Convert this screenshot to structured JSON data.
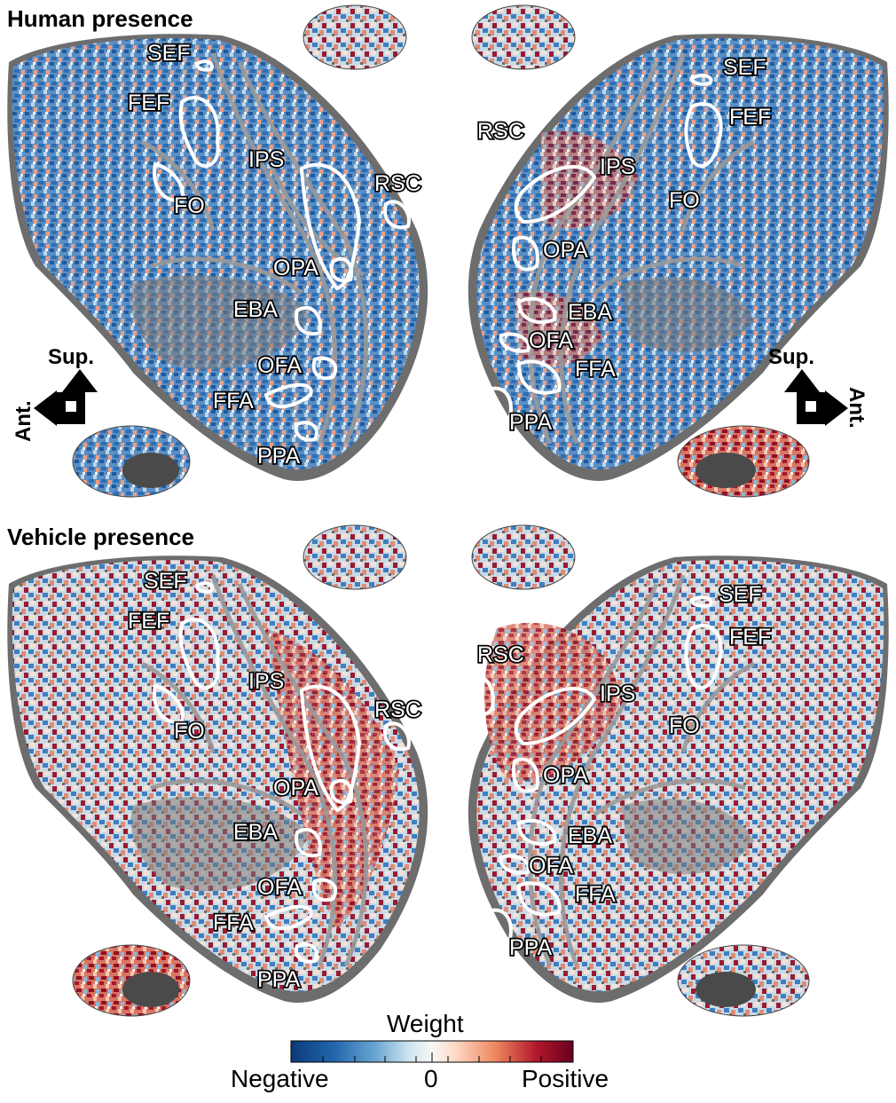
{
  "panels": [
    {
      "title": "Human presence",
      "left_rois": [
        "SEF",
        "FEF",
        "IPS",
        "FO",
        "RSC",
        "OPA",
        "EBA",
        "OFA",
        "FFA",
        "PPA"
      ],
      "right_rois": [
        "SEF",
        "FEF",
        "RSC",
        "IPS",
        "FO",
        "OPA",
        "EBA",
        "OFA",
        "FFA",
        "PPA"
      ]
    },
    {
      "title": "Vehicle presence",
      "left_rois": [
        "SEF",
        "FEF",
        "IPS",
        "FO",
        "RSC",
        "OPA",
        "EBA",
        "OFA",
        "FFA",
        "PPA"
      ],
      "right_rois": [
        "SEF",
        "FEF",
        "RSC",
        "IPS",
        "FO",
        "OPA",
        "EBA",
        "OFA",
        "FFA",
        "PPA"
      ]
    }
  ],
  "orientation": {
    "superior": "Sup.",
    "anterior": "Ant."
  },
  "colorbar": {
    "title": "Weight",
    "negative_label": "Negative",
    "zero_label": "0",
    "positive_label": "Positive",
    "colors": [
      "#0b3a78",
      "#2166ac",
      "#6aa6d2",
      "#d1e5f0",
      "#f7f7f7",
      "#fddbc7",
      "#ef8a62",
      "#b2182b",
      "#67001f"
    ]
  }
}
